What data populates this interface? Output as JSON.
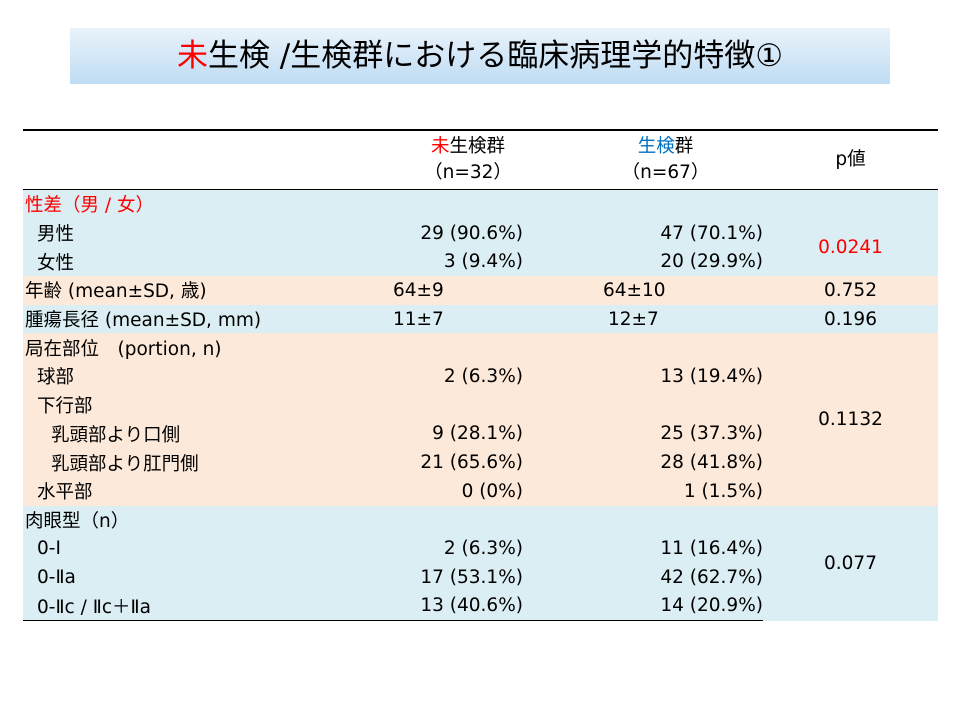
{
  "title": {
    "prefix_red": "未",
    "rest": "生検 /生検群における臨床病理学的特徴①"
  },
  "header": {
    "col1_red": "未",
    "col1_rest": "生検群",
    "col1_n": "（n=32）",
    "col2_blue": "生検",
    "col2_rest": "群",
    "col2_n": "（n=67）",
    "col3": "p値"
  },
  "rows": {
    "sex_label": "性差（男 / 女）",
    "male_label": "男性",
    "male_v1": "29 (90.6%)",
    "male_v2": "47 (70.1%)",
    "female_label": "女性",
    "female_v1": "3 (9.4%)",
    "female_v2": "20 (29.9%)",
    "sex_p": "0.0241",
    "age_label": "年齢 (mean±SD, 歳)",
    "age_v1": "64±9",
    "age_v2": "64±10",
    "age_p": "0.752",
    "size_label": "腫瘍長径 (mean±SD, mm)",
    "size_v1": "11±7",
    "size_v2": "12±7",
    "size_p": "0.196",
    "loc_label": "局在部位　(portion, n)",
    "bulb_label": "球部",
    "bulb_v1": "2 (6.3%)",
    "bulb_v2": "13 (19.4%)",
    "desc_label": "下行部",
    "oral_label": "乳頭部より口側",
    "oral_v1": "9 (28.1%)",
    "oral_v2": "25 (37.3%)",
    "anal_label": "乳頭部より肛門側",
    "anal_v1": "21 (65.6%)",
    "anal_v2": "28 (41.8%)",
    "horiz_label": "水平部",
    "horiz_v1": "0 (0%)",
    "horiz_v2": "1 (1.5%)",
    "loc_p": "0.1132",
    "macro_label": "肉眼型（n）",
    "m1_label": "0-Ⅰ",
    "m1_v1": "2 (6.3%)",
    "m1_v2": "11 (16.4%)",
    "m2_label": "0-Ⅱa",
    "m2_v1": "17 (53.1%)",
    "m2_v2": "42 (62.7%)",
    "m3_label": "0-Ⅱc / Ⅱc＋Ⅱa",
    "m3_v1": "13 (40.6%)",
    "m3_v2": "14 (20.9%)",
    "macro_p": "0.077"
  },
  "colors": {
    "title_bg_top": "#e9f3fb",
    "title_bg_bottom": "#bfdcf3",
    "row_blue": "#dbeef3",
    "row_pink": "#fde9d9",
    "accent_red": "#ff0000",
    "accent_blue": "#0070c0"
  }
}
